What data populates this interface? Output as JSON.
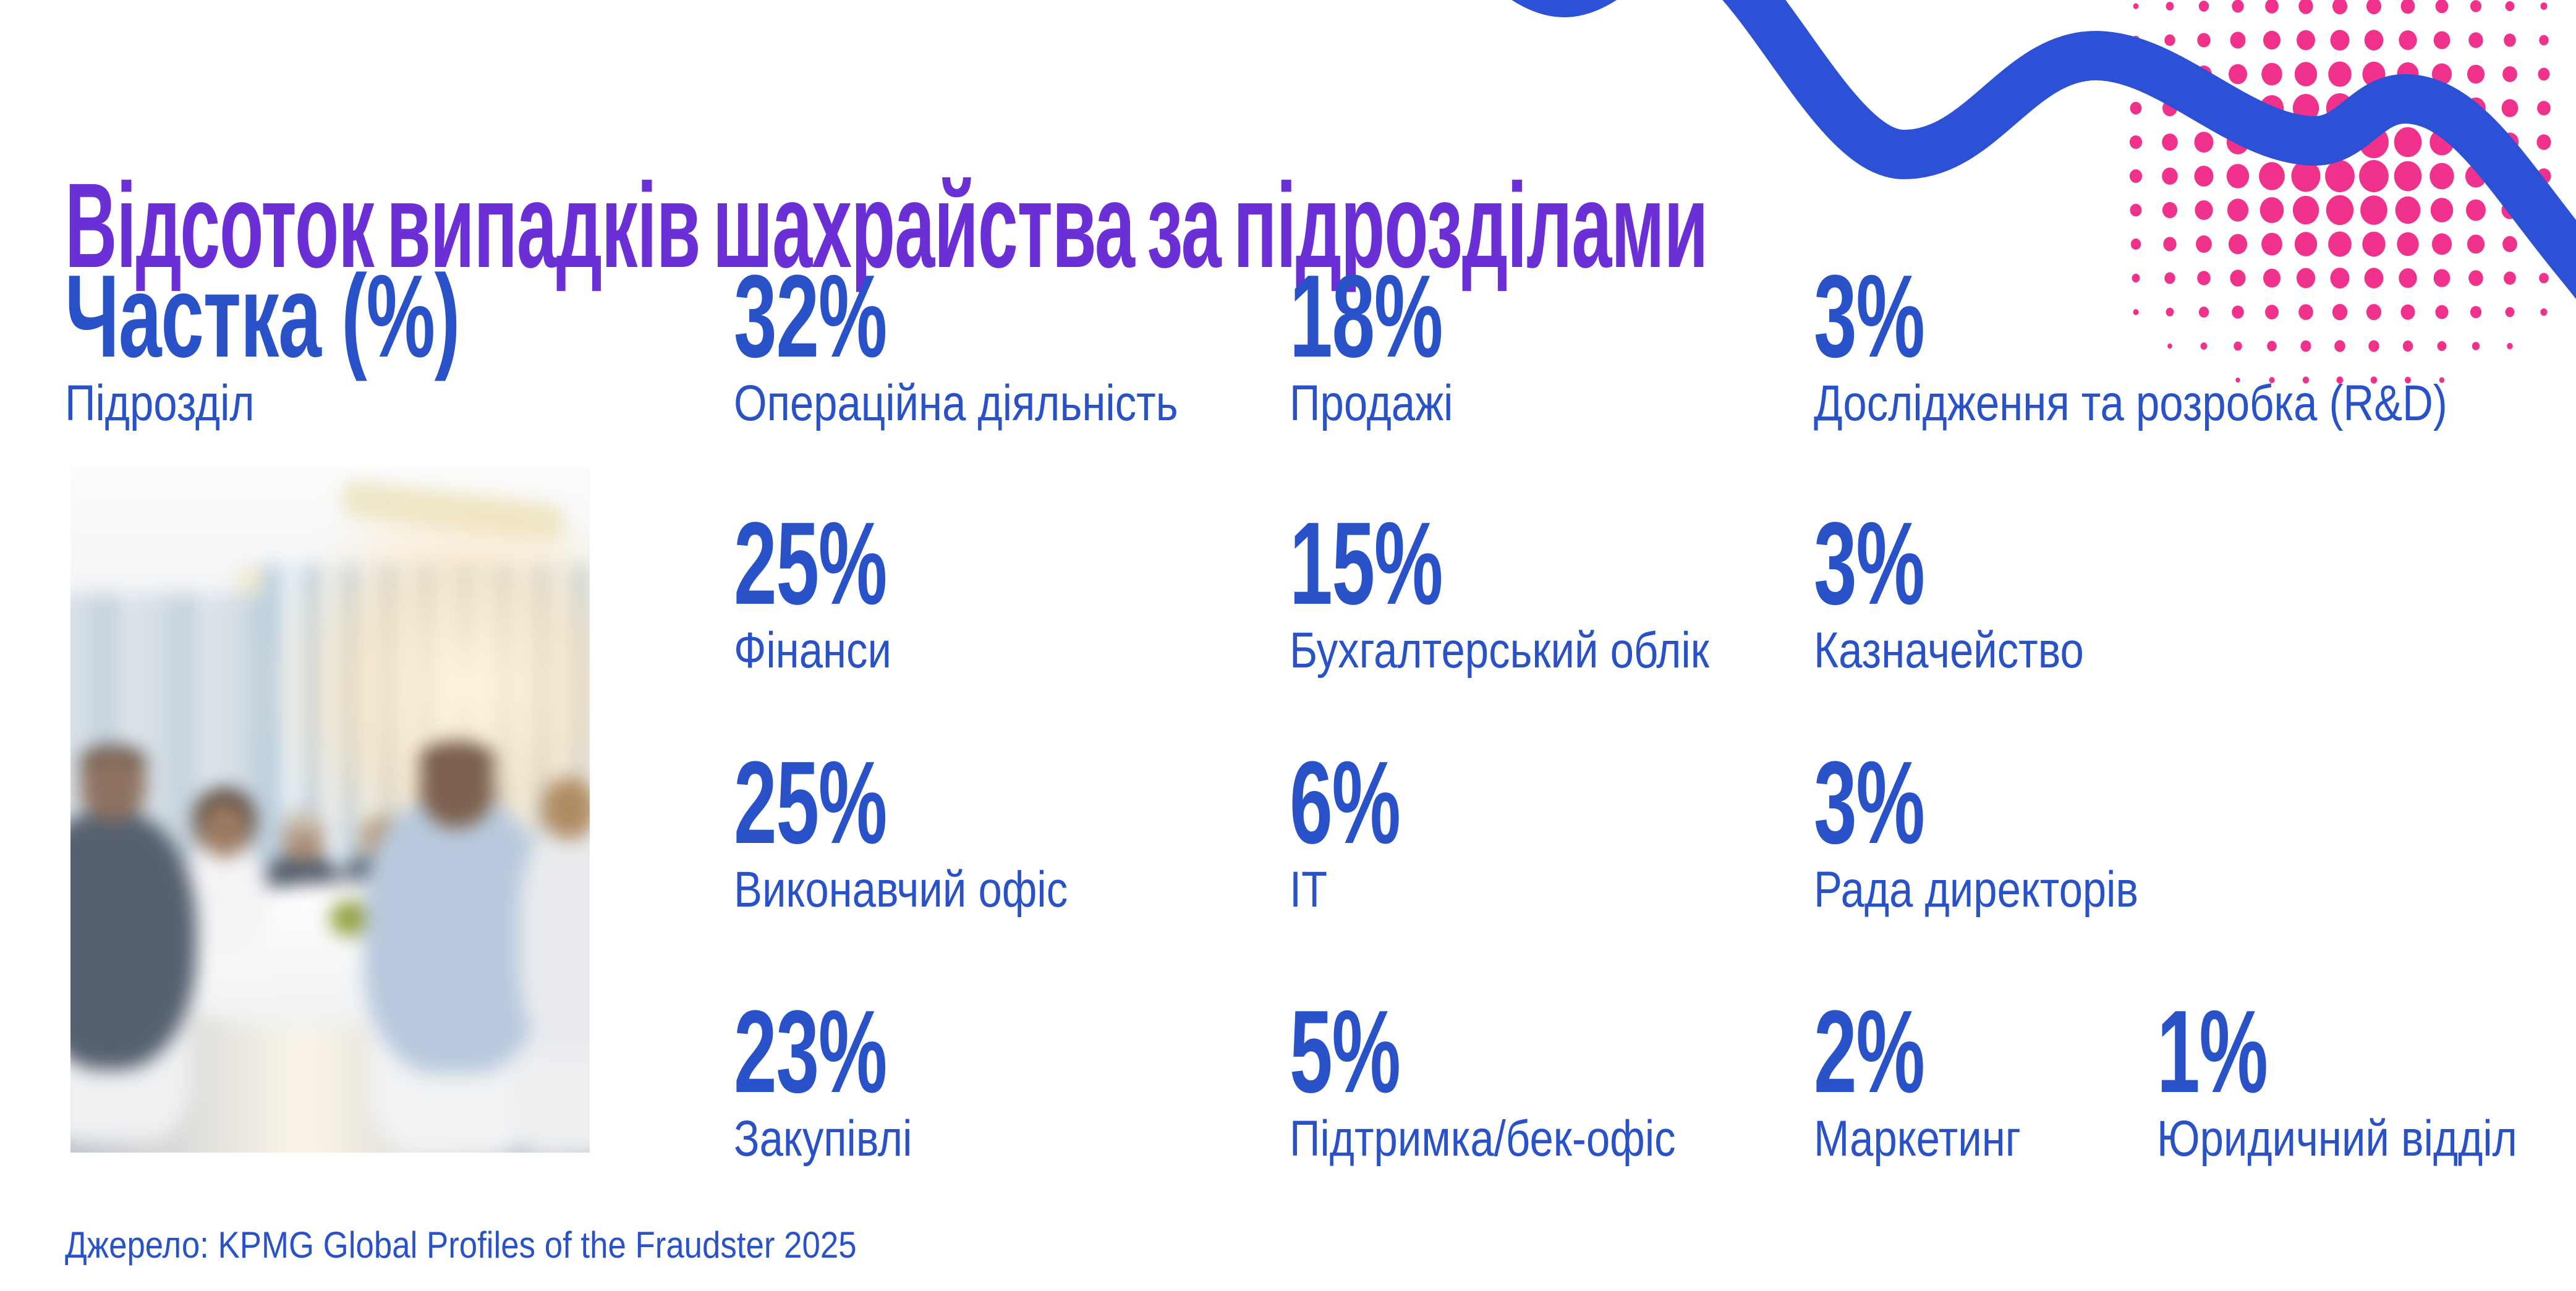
{
  "slide": {
    "title": "Відсоток випадків шахрайства за підрозділами",
    "value_header": "Частка (%)",
    "label_header": "Підрозділ",
    "source": "Джерело: KPMG Global Profiles of the Fraudster 2025"
  },
  "stats": [
    {
      "value": "32%",
      "label": "Операційна діяльність"
    },
    {
      "value": "18%",
      "label": "Продажі"
    },
    {
      "value": "3%",
      "label": "Дослідження та розробка (R&D)"
    },
    {
      "value": "25%",
      "label": "Фінанси"
    },
    {
      "value": "15%",
      "label": "Бухгалтерський облік"
    },
    {
      "value": "3%",
      "label": "Казначейство"
    },
    {
      "value": "25%",
      "label": "Виконавчий офіс"
    },
    {
      "value": "6%",
      "label": "ІТ"
    },
    {
      "value": "3%",
      "label": "Рада директорів"
    },
    {
      "value": "23%",
      "label": "Закупівлі"
    },
    {
      "value": "5%",
      "label": "Підтримка/бек-офіс"
    },
    {
      "value": "2%",
      "label": "Маркетинг"
    },
    {
      "value": "1%",
      "label": "Юридичний відділ"
    }
  ],
  "chart_data": {
    "type": "table",
    "title": "Відсоток випадків шахрайства за підрозділами",
    "columns": [
      "Підрозділ",
      "Частка (%)"
    ],
    "rows": [
      [
        "Операційна діяльність",
        32
      ],
      [
        "Фінанси",
        25
      ],
      [
        "Виконавчий офіс",
        25
      ],
      [
        "Закупівлі",
        23
      ],
      [
        "Продажі",
        18
      ],
      [
        "Бухгалтерський облік",
        15
      ],
      [
        "ІТ",
        6
      ],
      [
        "Підтримка/бек-офіс",
        5
      ],
      [
        "Дослідження та розробка (R&D)",
        3
      ],
      [
        "Казначейство",
        3
      ],
      [
        "Рада директорів",
        3
      ],
      [
        "Маркетинг",
        2
      ],
      [
        "Юридичний відділ",
        1
      ]
    ],
    "source": "KPMG Global Profiles of the Fraudster 2025"
  },
  "decor": {
    "photo": "blurred business meeting at white conference table",
    "ribbon": "blue wavy ribbon",
    "dots": "pink halftone dot pattern"
  },
  "colors": {
    "title_purple": "#6B2FD6",
    "text_blue": "#2A52C8",
    "ribbon_blue": "#2D51D6",
    "dot_pink": "#F0328C",
    "background": "#FFFFFF"
  }
}
